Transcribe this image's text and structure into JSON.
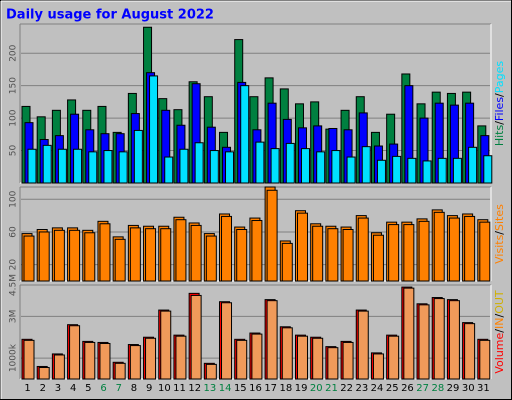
{
  "chart_data": [
    {
      "type": "bar",
      "title": "Daily usage for August 2022",
      "title_color": "#0000ff",
      "ylim": [
        0,
        245
      ],
      "yticks": [
        50,
        100,
        150,
        200
      ],
      "grid": true,
      "legend_separator": "/",
      "series": [
        {
          "name": "Hits",
          "color": "#008040",
          "values": [
            118,
            102,
            112,
            128,
            112,
            118,
            78,
            138,
            240,
            130,
            113,
            156,
            133,
            78,
            221,
            133,
            162,
            145,
            122,
            125,
            83,
            112,
            133,
            78,
            106,
            168,
            122,
            140,
            138,
            140,
            88
          ]
        },
        {
          "name": "Files",
          "color": "#0000ff",
          "values": [
            93,
            67,
            73,
            106,
            82,
            76,
            76,
            107,
            170,
            112,
            89,
            153,
            86,
            55,
            155,
            82,
            123,
            98,
            85,
            88,
            84,
            82,
            108,
            57,
            60,
            150,
            100,
            123,
            120,
            123,
            73
          ]
        },
        {
          "name": "Pages",
          "color": "#00e0ff",
          "values": [
            52,
            58,
            52,
            52,
            48,
            50,
            48,
            81,
            165,
            40,
            52,
            62,
            50,
            48,
            150,
            63,
            53,
            61,
            53,
            48,
            50,
            40,
            56,
            35,
            41,
            38,
            34,
            38,
            38,
            55,
            42
          ]
        }
      ]
    },
    {
      "type": "bar",
      "ylim": [
        0,
        115
      ],
      "yticks": [
        20,
        60,
        100
      ],
      "grid": true,
      "legend_separator": "/",
      "series": [
        {
          "name": "Visits",
          "color": "#ff8000",
          "values": [
            58,
            63,
            65,
            65,
            62,
            73,
            54,
            68,
            67,
            67,
            78,
            71,
            58,
            82,
            66,
            77,
            115,
            49,
            86,
            70,
            67,
            66,
            80,
            59,
            72,
            72,
            76,
            87,
            80,
            82,
            75
          ]
        },
        {
          "name": "Sites",
          "color": "#ff8000",
          "values": [
            55,
            60,
            62,
            62,
            59,
            70,
            51,
            65,
            64,
            64,
            75,
            68,
            55,
            79,
            63,
            74,
            111,
            46,
            83,
            67,
            64,
            63,
            77,
            56,
            69,
            69,
            73,
            84,
            77,
            79,
            72
          ]
        }
      ]
    },
    {
      "type": "bar",
      "ylim": [
        0,
        4.5
      ],
      "yticks": [
        {
          "value": 1,
          "label": "1000k"
        },
        {
          "value": 3,
          "label": "3M"
        },
        {
          "value": 4.5,
          "label": "4.5M"
        }
      ],
      "grid": true,
      "legend_separator": "/",
      "series": [
        {
          "name": "Volume",
          "color": "#ff0000",
          "values": [
            1.9,
            0.6,
            1.2,
            2.6,
            1.8,
            1.75,
            0.8,
            1.65,
            2.0,
            3.3,
            2.1,
            4.1,
            0.75,
            3.7,
            1.9,
            2.2,
            3.8,
            2.5,
            2.1,
            2.0,
            1.55,
            1.8,
            3.3,
            1.25,
            2.1,
            4.4,
            3.6,
            3.9,
            3.8,
            2.7,
            1.9
          ]
        },
        {
          "name": "IN",
          "color": "#f09a5a",
          "legend_color": "#ff8000",
          "values": [
            1.85,
            0.55,
            1.15,
            2.55,
            1.75,
            1.7,
            0.75,
            1.6,
            1.95,
            3.25,
            2.05,
            4.0,
            0.7,
            3.65,
            1.85,
            2.15,
            3.75,
            2.45,
            2.05,
            1.95,
            1.5,
            1.75,
            3.25,
            1.2,
            2.05,
            4.35,
            3.55,
            3.85,
            3.75,
            2.65,
            1.85
          ]
        }
      ],
      "legend_extra": {
        "name": "OUT",
        "color": "#d0b000"
      },
      "categories": [
        "1",
        "2",
        "3",
        "4",
        "5",
        "6",
        "7",
        "8",
        "9",
        "10",
        "11",
        "12",
        "13",
        "14",
        "15",
        "16",
        "17",
        "18",
        "19",
        "20",
        "21",
        "22",
        "23",
        "24",
        "25",
        "26",
        "27",
        "28",
        "29",
        "30",
        "31"
      ],
      "weekend_days": [
        6,
        7,
        13,
        14,
        20,
        21,
        27,
        28
      ],
      "weekend_color": "#008040"
    }
  ]
}
